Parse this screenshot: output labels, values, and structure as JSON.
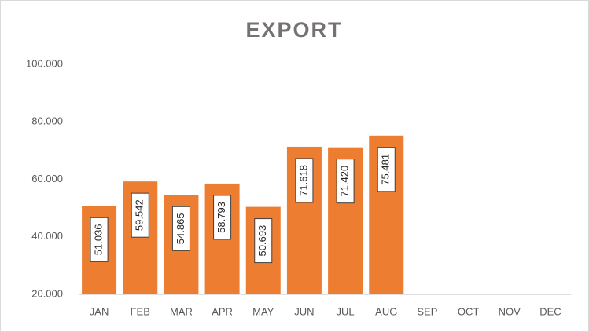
{
  "chart_data": {
    "type": "bar",
    "title": "EXPORT",
    "categories": [
      "JAN",
      "FEB",
      "MAR",
      "APR",
      "MAY",
      "JUN",
      "JUL",
      "AUG",
      "SEP",
      "OCT",
      "NOV",
      "DEC"
    ],
    "values": [
      51036,
      59542,
      54865,
      58793,
      50693,
      71618,
      71420,
      75481,
      null,
      null,
      null,
      null
    ],
    "value_labels": [
      "51.036",
      "59.542",
      "54.865",
      "58.793",
      "50.693",
      "71.618",
      "71.420",
      "75.481",
      null,
      null,
      null,
      null
    ],
    "color": "#ed7d31",
    "ylim": [
      20000,
      100000
    ],
    "yticks": [
      {
        "value": 20000,
        "label": "20.000"
      },
      {
        "value": 40000,
        "label": "40.000"
      },
      {
        "value": 60000,
        "label": "60.000"
      },
      {
        "value": 80000,
        "label": "80.000"
      },
      {
        "value": 100000,
        "label": "100.000"
      }
    ],
    "grid": false
  }
}
